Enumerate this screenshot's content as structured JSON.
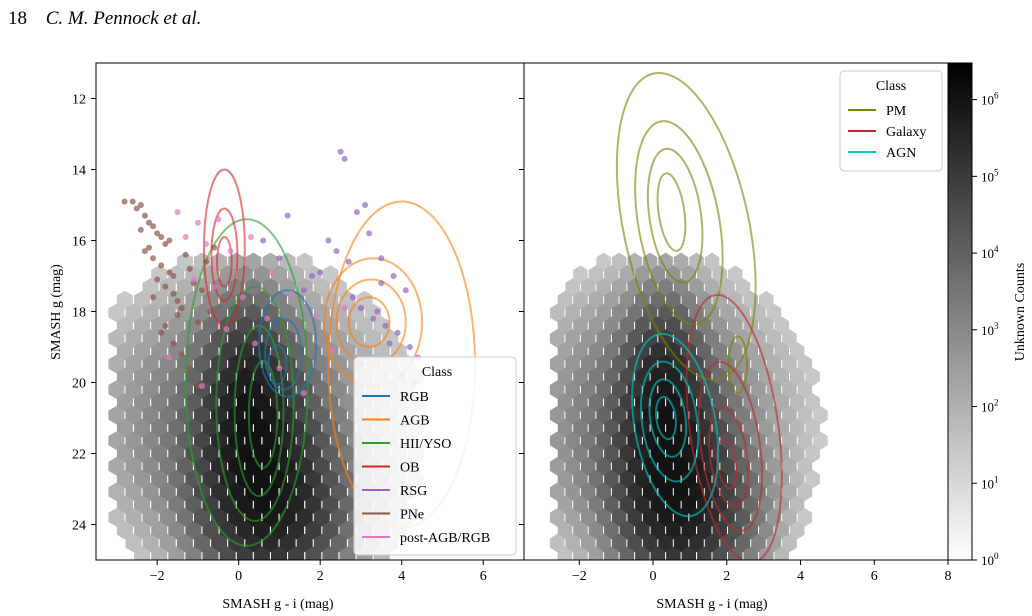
{
  "header": {
    "page_number": "18",
    "authors": "C. M. Pennock et al."
  },
  "colors": {
    "RGB": "#1f77b4",
    "AGB": "#ff7f0e",
    "HII/YSO": "#2ca02c",
    "OB": "#d62728",
    "RSG": "#9467bd",
    "PNe": "#8c564b",
    "post-AGB/RGB": "#e377c2",
    "PM": "#808000",
    "Galaxy": "#c0292b",
    "AGN": "#00c8c8"
  },
  "chart_data": [
    {
      "type": "scatter",
      "panel": "left",
      "xlabel": "SMASH g - i (mag)",
      "ylabel": "SMASH g (mag)",
      "xlim": [
        -3.5,
        7.0
      ],
      "ylim": [
        25.0,
        11.0
      ],
      "y_inverted": true,
      "xticks": [
        -2,
        0,
        2,
        4,
        6
      ],
      "yticks": [
        12,
        14,
        16,
        18,
        20,
        22,
        24
      ],
      "legend": {
        "title": "Class",
        "placement": "lower-right",
        "entries": [
          "RGB",
          "AGB",
          "HII/YSO",
          "OB",
          "RSG",
          "PNe",
          "post-AGB/RGB"
        ]
      },
      "background": "hexbin density of Unknown sources (greyscale, log counts)",
      "contours": [
        {
          "name": "HII/YSO",
          "rings": [
            {
              "cx": 0.2,
              "cy": 20.0,
              "rx": 1.5,
              "ry": 4.6,
              "rot": 0
            },
            {
              "cx": 0.4,
              "cy": 20.6,
              "rx": 0.95,
              "ry": 3.3,
              "rot": 0
            },
            {
              "cx": 0.5,
              "cy": 20.8,
              "rx": 0.6,
              "ry": 2.4,
              "rot": 0
            },
            {
              "cx": 0.6,
              "cy": 20.9,
              "rx": 0.35,
              "ry": 1.5,
              "rot": 0
            }
          ]
        },
        {
          "name": "OB",
          "rings": [
            {
              "cx": -0.35,
              "cy": 16.2,
              "rx": 0.5,
              "ry": 2.2,
              "rot": 0
            },
            {
              "cx": -0.35,
              "cy": 16.4,
              "rx": 0.32,
              "ry": 1.3,
              "rot": 0
            },
            {
              "cx": -0.35,
              "cy": 16.6,
              "rx": 0.18,
              "ry": 0.7,
              "rot": 0
            }
          ]
        },
        {
          "name": "RGB",
          "rings": [
            {
              "cx": 1.2,
              "cy": 18.9,
              "rx": 0.7,
              "ry": 1.5,
              "rot": 0
            },
            {
              "cx": 1.1,
              "cy": 19.2,
              "rx": 0.45,
              "ry": 1.0,
              "rot": 0
            },
            {
              "cx": 0.95,
              "cy": 19.5,
              "rx": 0.22,
              "ry": 0.55,
              "rot": 0
            }
          ]
        },
        {
          "name": "AGB",
          "rings": [
            {
              "cx": 4.0,
              "cy": 19.5,
              "rx": 1.8,
              "ry": 4.6,
              "rot": 0
            },
            {
              "cx": 3.3,
              "cy": 18.3,
              "rx": 1.2,
              "ry": 1.8,
              "rot": 0
            },
            {
              "cx": 3.25,
              "cy": 18.3,
              "rx": 0.85,
              "ry": 1.2,
              "rot": 0
            },
            {
              "cx": 3.2,
              "cy": 18.3,
              "rx": 0.5,
              "ry": 0.7,
              "rot": 0
            }
          ]
        }
      ],
      "points": [
        {
          "name": "PNe",
          "x": [
            -2.8,
            -2.6,
            -2.5,
            -2.4,
            -2.3,
            -2.2,
            -2.1,
            -2.0,
            -1.9,
            -1.8,
            -2.3,
            -2.1,
            -1.9,
            -1.7,
            -1.6,
            -2.0,
            -1.8,
            -1.6,
            -1.5,
            -1.4,
            -2.4,
            -2.2,
            -1.7,
            -1.3,
            -1.2,
            -1.1,
            -0.9,
            -0.8,
            -0.6,
            -1.5,
            -1.0,
            -0.7,
            -1.9,
            -1.6,
            -1.4,
            -1.2,
            -1.0,
            -2.1,
            -1.8
          ],
          "y": [
            14.9,
            14.9,
            15.1,
            15.0,
            15.3,
            15.5,
            15.6,
            15.8,
            15.9,
            16.1,
            16.3,
            16.5,
            16.7,
            16.9,
            17.0,
            17.1,
            17.3,
            17.5,
            17.7,
            17.9,
            15.7,
            16.2,
            16.0,
            16.4,
            16.8,
            17.2,
            17.4,
            16.6,
            16.2,
            18.1,
            18.3,
            18.0,
            18.6,
            18.9,
            19.2,
            19.6,
            20.1,
            17.6,
            18.4
          ]
        },
        {
          "name": "RSG",
          "x": [
            2.5,
            2.6,
            2.9,
            3.2,
            3.5,
            3.8,
            4.1,
            2.7,
            3.0,
            3.3,
            3.6,
            3.9,
            4.2,
            4.4,
            2.8,
            3.4,
            2.2,
            2.0,
            1.6,
            1.2,
            1.0,
            0.6,
            3.1,
            3.7,
            4.0,
            2.4,
            3.5,
            1.8,
            4.3,
            3.0
          ],
          "y": [
            13.5,
            13.7,
            15.2,
            15.8,
            16.5,
            17.0,
            17.4,
            16.6,
            17.9,
            18.2,
            18.4,
            18.6,
            19.0,
            19.3,
            17.6,
            18.0,
            16.0,
            16.9,
            17.4,
            15.3,
            16.5,
            16.0,
            15.0,
            18.9,
            19.8,
            16.3,
            17.2,
            17.0,
            20.0,
            19.5
          ]
        },
        {
          "name": "post-AGB/RGB",
          "x": [
            -1.5,
            -1.3,
            -1.0,
            -0.8,
            -0.5,
            -0.2,
            0.3,
            0.8,
            1.3,
            1.9,
            2.6,
            -1.1,
            -0.3,
            0.4,
            1.0,
            1.6,
            -0.6,
            0.1,
            0.7,
            -1.7,
            -0.9,
            2.3
          ],
          "y": [
            15.2,
            15.9,
            15.5,
            16.1,
            15.4,
            16.3,
            15.9,
            16.9,
            17.5,
            18.1,
            17.9,
            17.1,
            18.5,
            18.9,
            19.6,
            20.3,
            17.3,
            17.6,
            18.2,
            19.3,
            20.1,
            19.1
          ]
        }
      ]
    },
    {
      "type": "heatmap",
      "panel": "right",
      "xlabel": "SMASH g - i (mag)",
      "xlim": [
        -3.5,
        8.0
      ],
      "ylim": [
        25.0,
        11.0
      ],
      "y_inverted": true,
      "xticks": [
        -2,
        0,
        2,
        4,
        6,
        8
      ],
      "legend": {
        "title": "Class",
        "placement": "top-right",
        "entries": [
          "PM",
          "Galaxy",
          "AGN"
        ]
      },
      "colorbar": {
        "label": "Unknown Counts",
        "scale": "log",
        "range": [
          1,
          3000000
        ],
        "ticks": [
          {
            "value": 1,
            "label": "10",
            "exp": "0"
          },
          {
            "value": 10,
            "label": "10",
            "exp": "1"
          },
          {
            "value": 100,
            "label": "10",
            "exp": "2"
          },
          {
            "value": 1000,
            "label": "10",
            "exp": "3"
          },
          {
            "value": 10000,
            "label": "10",
            "exp": "4"
          },
          {
            "value": 100000,
            "label": "10",
            "exp": "5"
          },
          {
            "value": 1000000,
            "label": "10",
            "exp": "6"
          }
        ]
      },
      "contours": [
        {
          "name": "PM",
          "rings": [
            {
              "cx": 0.9,
              "cy": 15.6,
              "rx": 1.7,
              "ry": 4.4,
              "rot": -12
            },
            {
              "cx": 0.7,
              "cy": 15.5,
              "rx": 1.1,
              "ry": 2.9,
              "rot": -10
            },
            {
              "cx": 0.6,
              "cy": 15.3,
              "rx": 0.7,
              "ry": 1.9,
              "rot": -8
            },
            {
              "cx": 0.5,
              "cy": 15.2,
              "rx": 0.35,
              "ry": 1.1,
              "rot": -8
            },
            {
              "cx": 2.3,
              "cy": 19.5,
              "rx": 0.25,
              "ry": 0.8,
              "rot": 0
            }
          ]
        },
        {
          "name": "Galaxy",
          "rings": [
            {
              "cx": 2.2,
              "cy": 21.3,
              "rx": 1.2,
              "ry": 3.8,
              "rot": -8
            },
            {
              "cx": 2.1,
              "cy": 21.8,
              "rx": 0.8,
              "ry": 2.4,
              "rot": -8
            },
            {
              "cx": 2.05,
              "cy": 22.1,
              "rx": 0.5,
              "ry": 1.4,
              "rot": -8
            },
            {
              "cx": 2.0,
              "cy": 22.3,
              "rx": 0.25,
              "ry": 0.7,
              "rot": -8
            }
          ]
        },
        {
          "name": "AGN",
          "rings": [
            {
              "cx": 0.6,
              "cy": 21.2,
              "rx": 1.1,
              "ry": 2.6,
              "rot": -10
            },
            {
              "cx": 0.45,
              "cy": 21.1,
              "rx": 0.75,
              "ry": 1.7,
              "rot": -8
            },
            {
              "cx": 0.4,
              "cy": 21.0,
              "rx": 0.48,
              "ry": 1.1,
              "rot": -8
            },
            {
              "cx": 0.35,
              "cy": 21.0,
              "rx": 0.26,
              "ry": 0.6,
              "rot": -8
            }
          ]
        }
      ]
    }
  ]
}
